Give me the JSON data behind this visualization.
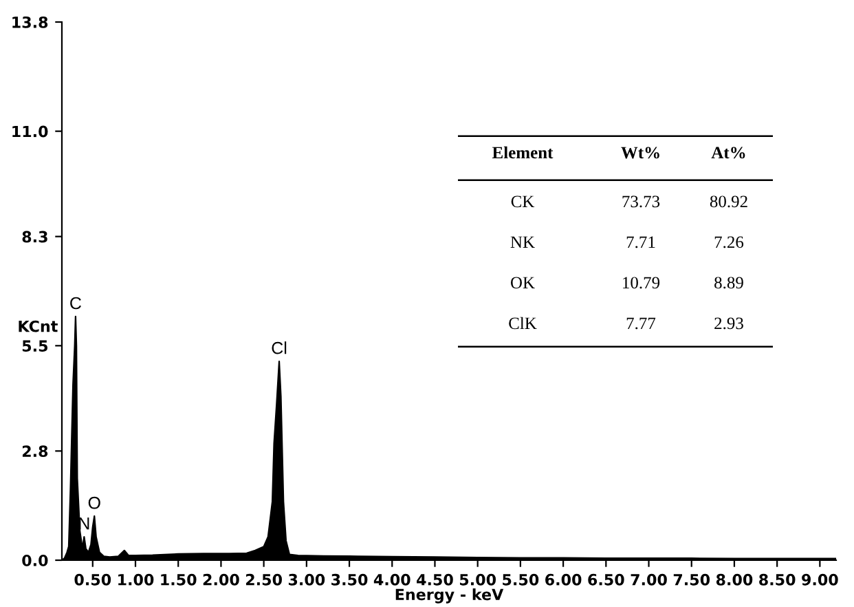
{
  "chart_data": {
    "type": "area",
    "xlabel": "Energy - keV",
    "ylabel": "KCnt",
    "x": [
      0.14,
      0.17,
      0.2,
      0.22,
      0.24,
      0.27,
      0.29,
      0.3,
      0.31,
      0.32,
      0.35,
      0.38,
      0.4,
      0.42,
      0.45,
      0.48,
      0.5,
      0.52,
      0.54,
      0.58,
      0.63,
      0.7,
      0.8,
      0.87,
      0.89,
      0.92,
      1.0,
      1.2,
      1.5,
      1.8,
      2.1,
      2.3,
      2.4,
      2.5,
      2.55,
      2.6,
      2.62,
      2.65,
      2.68,
      2.7,
      2.73,
      2.76,
      2.8,
      2.9,
      3.2,
      3.6,
      4.0,
      4.5,
      5.0,
      5.5,
      6.0,
      6.5,
      7.0,
      7.5,
      8.0,
      8.5,
      9.0,
      9.19
    ],
    "values": [
      0.0,
      0.05,
      0.2,
      0.35,
      1.8,
      4.5,
      5.5,
      6.25,
      5.5,
      2.1,
      0.75,
      0.3,
      0.6,
      0.3,
      0.2,
      0.4,
      0.85,
      1.13,
      0.6,
      0.2,
      0.1,
      0.08,
      0.1,
      0.25,
      0.2,
      0.12,
      0.12,
      0.13,
      0.16,
      0.17,
      0.17,
      0.18,
      0.25,
      0.35,
      0.6,
      1.5,
      3.0,
      4.0,
      5.1,
      4.2,
      1.5,
      0.5,
      0.15,
      0.12,
      0.11,
      0.1,
      0.09,
      0.08,
      0.07,
      0.06,
      0.06,
      0.05,
      0.05,
      0.05,
      0.04,
      0.04,
      0.04,
      0.04
    ],
    "color": "#000000",
    "xlim": [
      0.14,
      9.19
    ],
    "ylim": [
      0,
      13.8
    ],
    "xticks": [
      {
        "value": 0.5,
        "label": "0.50"
      },
      {
        "value": 1.0,
        "label": "1.00"
      },
      {
        "value": 1.5,
        "label": "1.50"
      },
      {
        "value": 2.0,
        "label": "2.00"
      },
      {
        "value": 2.5,
        "label": "2.50"
      },
      {
        "value": 3.0,
        "label": "3.00"
      },
      {
        "value": 3.5,
        "label": "3.50"
      },
      {
        "value": 4.0,
        "label": "4.00"
      },
      {
        "value": 4.5,
        "label": "4.50"
      },
      {
        "value": 5.0,
        "label": "5.00"
      },
      {
        "value": 5.5,
        "label": "5.50"
      },
      {
        "value": 6.0,
        "label": "6.00"
      },
      {
        "value": 6.5,
        "label": "6.50"
      },
      {
        "value": 7.0,
        "label": "7.00"
      },
      {
        "value": 7.5,
        "label": "7.50"
      },
      {
        "value": 8.0,
        "label": "8.00"
      },
      {
        "value": 8.5,
        "label": "8.50"
      },
      {
        "value": 9.0,
        "label": "9.00"
      }
    ],
    "yticks": [
      {
        "value": 0,
        "label": "0.0"
      },
      {
        "value": 2.8,
        "label": "2.8"
      },
      {
        "value": 5.5,
        "label": "5.5"
      },
      {
        "value": 8.3,
        "label": "8.3"
      },
      {
        "value": 11.0,
        "label": "11.0"
      },
      {
        "value": 13.8,
        "label": "13.8"
      }
    ],
    "annotations": [
      {
        "text": "C",
        "x": 0.3,
        "y": 6.25
      },
      {
        "text": "N",
        "x": 0.4,
        "y": 0.6
      },
      {
        "text": "O",
        "x": 0.52,
        "y": 1.13
      },
      {
        "text": "Cl",
        "x": 2.68,
        "y": 5.1
      },
      "Element",
      "Wt%",
      "At%",
      "CK",
      "73.73",
      "80.92",
      "NK",
      "7.71",
      "7.26",
      "OK",
      "10.79",
      "8.89",
      "ClK",
      "7.77",
      "2.93"
    ]
  }
}
